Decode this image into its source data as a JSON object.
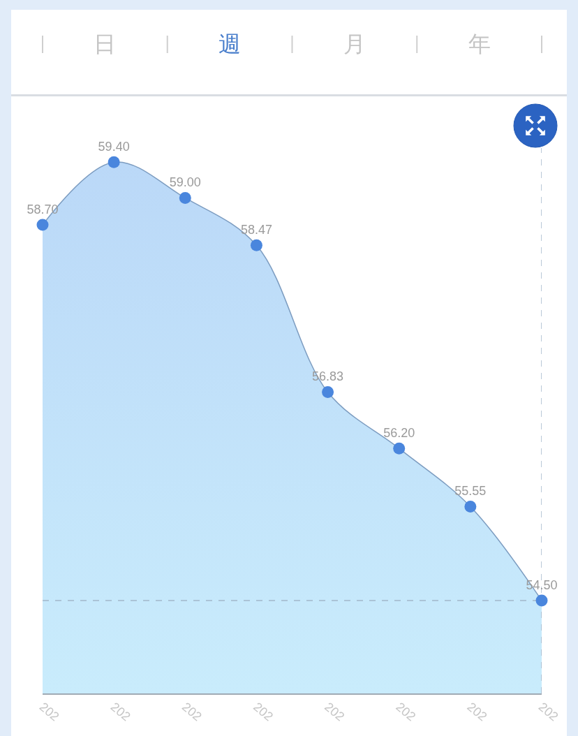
{
  "chart_data": [
    {
      "type": "other",
      "categories": [
        "日",
        "週",
        "月",
        "年"
      ],
      "colors": [
        "#c4c4c4",
        "#4a7fcc",
        "#c4c4c4",
        "#c4c4c4"
      ]
    },
    {
      "type": "area",
      "categories": [
        "202",
        "202",
        "202",
        "202",
        "202",
        "202",
        "202",
        "202"
      ],
      "values": [
        58.7,
        59.4,
        59.0,
        58.47,
        56.83,
        56.2,
        55.55,
        54.5
      ],
      "value_labels": [
        "58.70",
        "59.40",
        "59.00",
        "58.47",
        "56.83",
        "56.20",
        "55.55",
        "54.50"
      ],
      "color": "#4a86dd",
      "marker": "circle",
      "line_style": "solid",
      "tick_labels": "x",
      "ref_lines": [
        {
          "axis": "y",
          "value": 54.5,
          "line_style": "dashed",
          "color": "#a3b6ca"
        }
      ]
    }
  ]
}
